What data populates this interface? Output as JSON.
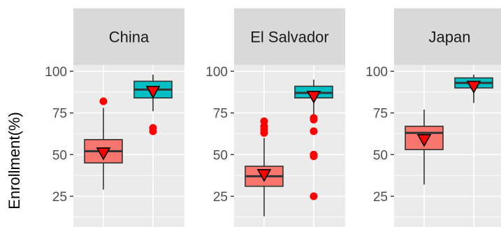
{
  "chart_data": {
    "type": "boxplot",
    "ylabel": "Enrollment(%)",
    "ylim": [
      10,
      100
    ],
    "yticks": [
      25,
      50,
      75,
      100
    ],
    "grid": true,
    "legend": "none",
    "colors": {
      "box_a": "#f8766d",
      "box_b": "#00bfc4",
      "outlier": "#ff0000",
      "mean_marker": "#ff0000",
      "panel_bg": "#ebebeb",
      "strip_bg": "#d9d9d9",
      "grid": "#ffffff"
    },
    "panels": [
      {
        "label": "China",
        "boxes": [
          {
            "series": "box_a",
            "q1": 45,
            "median": 52,
            "q3": 59,
            "whisker_low": 29,
            "whisker_high": 78,
            "mean": 51,
            "outliers": [
              82
            ]
          },
          {
            "series": "box_b",
            "q1": 84,
            "median": 89,
            "q3": 94,
            "whisker_low": 76,
            "whisker_high": 98,
            "mean": 88,
            "outliers": [
              66,
              64
            ]
          }
        ]
      },
      {
        "label": "El Salvador",
        "boxes": [
          {
            "series": "box_a",
            "q1": 31,
            "median": 37,
            "q3": 43,
            "whisker_low": 13,
            "whisker_high": 60,
            "mean": 38,
            "outliers": [
              70,
              67,
              65,
              63
            ]
          },
          {
            "series": "box_b",
            "q1": 84,
            "median": 87,
            "q3": 91,
            "whisker_low": 73,
            "whisker_high": 95,
            "mean": 85,
            "outliers": [
              72,
              71,
              64,
              50,
              49,
              25
            ]
          }
        ]
      },
      {
        "label": "Japan",
        "boxes": [
          {
            "series": "box_a",
            "q1": 53,
            "median": 63,
            "q3": 67,
            "whisker_low": 32,
            "whisker_high": 77,
            "mean": 59,
            "outliers": []
          },
          {
            "series": "box_b",
            "q1": 90,
            "median": 93,
            "q3": 96,
            "whisker_low": 81,
            "whisker_high": 98,
            "mean": 91,
            "outliers": []
          }
        ]
      }
    ]
  }
}
